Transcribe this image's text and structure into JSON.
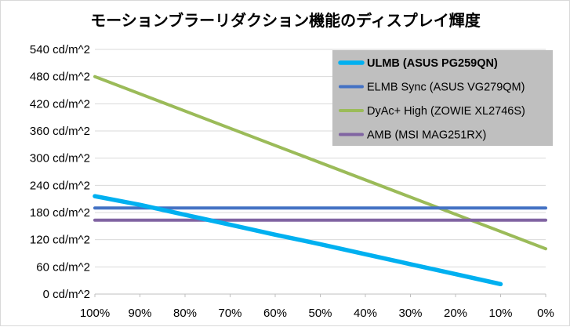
{
  "chart_data": {
    "type": "line",
    "title": "モーションブラーリダクション機能のディスプレイ輝度",
    "xlabel": "",
    "ylabel": "",
    "x_categories": [
      "100%",
      "90%",
      "80%",
      "70%",
      "60%",
      "50%",
      "40%",
      "30%",
      "20%",
      "10%",
      "0%"
    ],
    "x_values": [
      100,
      90,
      80,
      70,
      60,
      50,
      40,
      30,
      20,
      10,
      0
    ],
    "y_ticks": [
      0,
      60,
      120,
      180,
      240,
      300,
      360,
      420,
      480,
      540
    ],
    "y_tick_labels": [
      "0 cd/m^2",
      "60 cd/m^2",
      "120 cd/m^2",
      "180 cd/m^2",
      "240 cd/m^2",
      "300 cd/m^2",
      "360 cd/m^2",
      "420 cd/m^2",
      "480 cd/m^2",
      "540 cd/m^2"
    ],
    "ylim": [
      0,
      540
    ],
    "xlim": [
      100,
      0
    ],
    "grid": "horizontal",
    "legend_position": "top-right",
    "series": [
      {
        "name": "ULMB (ASUS PG259QN)",
        "color": "#00b0f0",
        "bold": true,
        "points": [
          [
            100,
            216
          ],
          [
            90,
            197
          ],
          [
            80,
            175
          ],
          [
            70,
            153
          ],
          [
            60,
            131
          ],
          [
            50,
            110
          ],
          [
            40,
            88
          ],
          [
            30,
            66
          ],
          [
            20,
            44
          ],
          [
            10,
            22
          ]
        ]
      },
      {
        "name": "ELMB Sync (ASUS VG279QM)",
        "color": "#4472c4",
        "bold": false,
        "points": [
          [
            100,
            190
          ],
          [
            0,
            190
          ]
        ]
      },
      {
        "name": "DyAc+ High (ZOWIE XL2746S)",
        "color": "#9bbb59",
        "bold": false,
        "points": [
          [
            100,
            480
          ],
          [
            0,
            100
          ]
        ]
      },
      {
        "name": "AMB (MSI MAG251RX)",
        "color": "#8064a2",
        "bold": false,
        "points": [
          [
            100,
            163
          ],
          [
            0,
            163
          ]
        ]
      }
    ]
  }
}
